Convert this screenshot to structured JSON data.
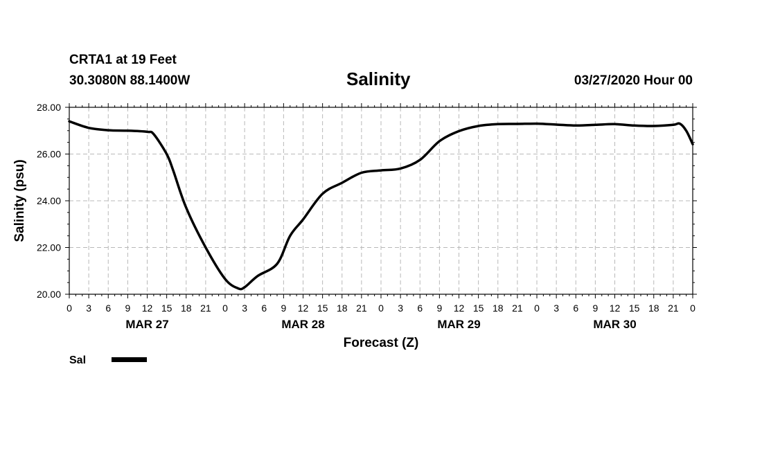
{
  "chart_data": {
    "type": "line",
    "station": "CRTA1 at 19 Feet",
    "coords": "30.3080N 88.1400W",
    "title": "Salinity",
    "run_time": "03/27/2020 Hour 00",
    "xlabel": "Forecast (Z)",
    "ylabel": "Salinity (psu)",
    "ylim": [
      20,
      28
    ],
    "yticks": [
      "20.00",
      "22.00",
      "24.00",
      "26.00",
      "28.00"
    ],
    "xlim": [
      0,
      96
    ],
    "xticks": [
      "0",
      "3",
      "6",
      "9",
      "12",
      "15",
      "18",
      "21",
      "0",
      "3",
      "6",
      "9",
      "12",
      "15",
      "18",
      "21",
      "0",
      "3",
      "6",
      "9",
      "12",
      "15",
      "18",
      "21",
      "0",
      "3",
      "6",
      "9",
      "12",
      "15",
      "18",
      "21",
      "0"
    ],
    "day_labels": [
      {
        "label": "MAR 27",
        "hour": 12
      },
      {
        "label": "MAR 28",
        "hour": 36
      },
      {
        "label": "MAR 29",
        "hour": 60
      },
      {
        "label": "MAR 30",
        "hour": 84
      }
    ],
    "grid": true,
    "legend_position": "bottom-left",
    "series": [
      {
        "name": "Sal",
        "color": "#000000",
        "x": [
          0,
          3,
          6,
          9,
          12,
          13,
          15,
          16,
          18,
          21,
          24,
          26,
          27,
          29,
          32,
          34,
          36,
          39,
          42,
          45,
          48,
          51,
          54,
          57,
          60,
          63,
          66,
          69,
          72,
          75,
          78,
          81,
          84,
          87,
          90,
          93,
          94,
          95,
          96
        ],
        "values": [
          27.4,
          27.12,
          27.02,
          27.0,
          26.95,
          26.85,
          26.0,
          25.3,
          23.7,
          22.0,
          20.65,
          20.25,
          20.3,
          20.78,
          21.3,
          22.5,
          23.2,
          24.3,
          24.77,
          25.2,
          25.3,
          25.38,
          25.75,
          26.55,
          26.98,
          27.2,
          27.28,
          27.29,
          27.3,
          27.26,
          27.22,
          27.25,
          27.28,
          27.22,
          27.2,
          27.25,
          27.3,
          27.0,
          26.42
        ]
      }
    ]
  }
}
